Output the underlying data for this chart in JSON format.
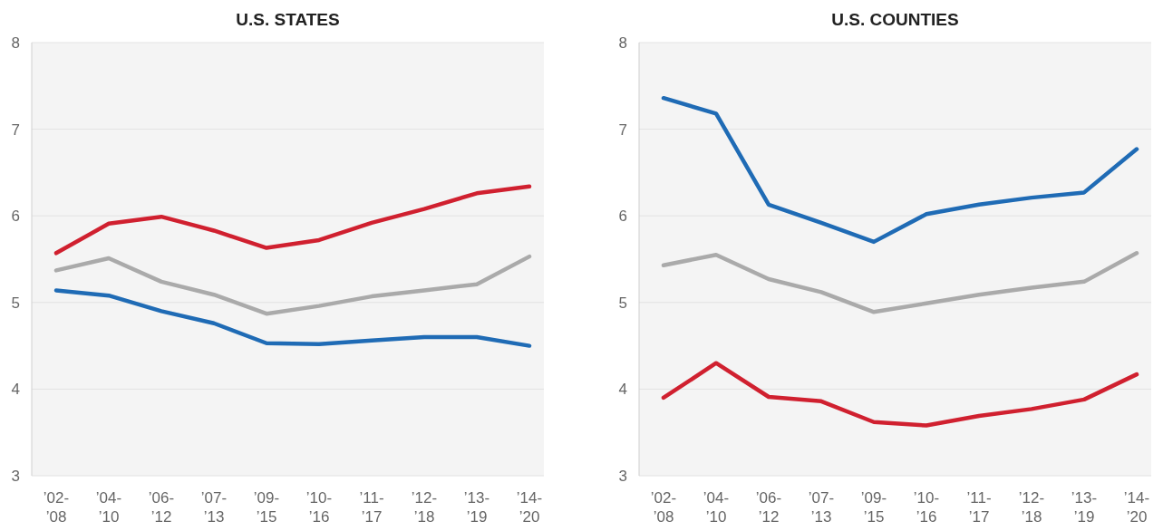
{
  "chart_data": [
    {
      "type": "line",
      "title": "U.S. STATES",
      "categories": [
        "’02-’08",
        "’04-’10",
        "’06-’12",
        "’07-’13",
        "’09-’15",
        "’10-’16",
        "’11-’17",
        "’12-’18",
        "’13-’19",
        "’14-’20"
      ],
      "ylim": [
        3,
        8
      ],
      "yticks": [
        3,
        4,
        5,
        6,
        7,
        8
      ],
      "grid": "y",
      "marker": "none",
      "line_style": "solid",
      "series": [
        {
          "color": "#d0202f",
          "values": [
            5.57,
            5.91,
            5.99,
            5.83,
            5.63,
            5.72,
            5.92,
            6.08,
            6.26,
            6.34
          ]
        },
        {
          "color": "#aaaaaa",
          "values": [
            5.37,
            5.51,
            5.24,
            5.09,
            4.87,
            4.96,
            5.07,
            5.14,
            5.21,
            5.53
          ]
        },
        {
          "color": "#1f6bb5",
          "values": [
            5.14,
            5.08,
            4.9,
            4.76,
            4.53,
            4.52,
            4.56,
            4.6,
            4.6,
            4.5
          ]
        }
      ]
    },
    {
      "type": "line",
      "title": "U.S. COUNTIES",
      "categories": [
        "’02-’08",
        "’04-’10",
        "’06-’12",
        "’07-’13",
        "’09-’15",
        "’10-’16",
        "’11-’17",
        "’12-’18",
        "’13-’19",
        "’14-’20"
      ],
      "ylim": [
        3,
        8
      ],
      "yticks": [
        3,
        4,
        5,
        6,
        7,
        8
      ],
      "grid": "y",
      "marker": "none",
      "line_style": "solid",
      "series": [
        {
          "color": "#1f6bb5",
          "values": [
            7.36,
            7.18,
            6.13,
            5.92,
            5.7,
            6.02,
            6.13,
            6.21,
            6.27,
            6.77
          ]
        },
        {
          "color": "#aaaaaa",
          "values": [
            5.43,
            5.55,
            5.27,
            5.12,
            4.89,
            4.99,
            5.09,
            5.17,
            5.24,
            5.57
          ]
        },
        {
          "color": "#d0202f",
          "values": [
            3.9,
            4.3,
            3.91,
            3.86,
            3.62,
            3.58,
            3.69,
            3.77,
            3.88,
            4.17
          ]
        }
      ]
    }
  ]
}
